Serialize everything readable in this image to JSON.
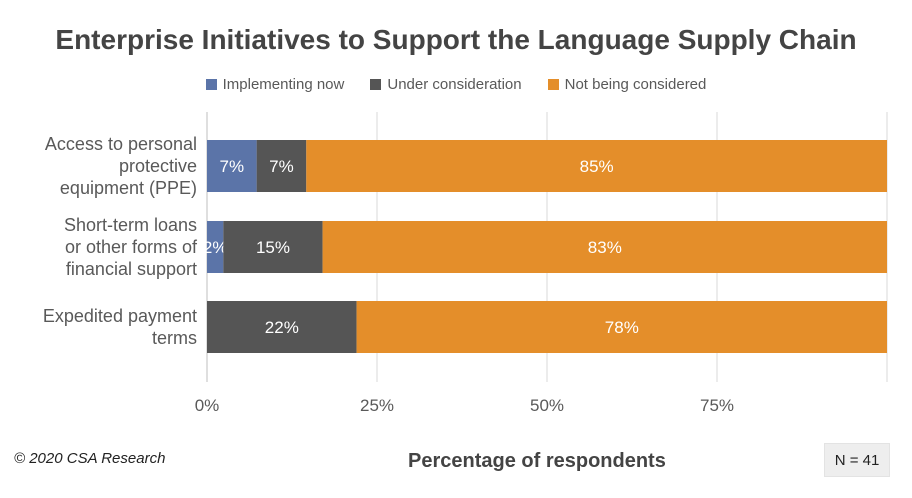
{
  "chart_data": {
    "type": "bar",
    "orientation": "horizontal",
    "stacked": true,
    "title": "Enterprise Initiatives to Support the Language Supply Chain",
    "xlabel": "Percentage of respondents",
    "ylabel": "",
    "xlim": [
      0,
      100
    ],
    "x_ticks": [
      "0%",
      "25%",
      "50%",
      "75%"
    ],
    "grid": true,
    "legend_position": "top",
    "categories": [
      "Access to personal protective equipment (PPE)",
      "Short-term loans or other forms of financial support",
      "Expedited payment terms"
    ],
    "category_lines": [
      [
        "Access to personal",
        "protective",
        "equipment (PPE)"
      ],
      [
        "Short-term loans",
        "or other forms of",
        "financial support"
      ],
      [
        "Expedited payment",
        "terms"
      ]
    ],
    "series": [
      {
        "name": "Implementing now",
        "color": "#5b74a8",
        "values": [
          7.3,
          2.4,
          0
        ],
        "labels": [
          "7%",
          "2%",
          ""
        ]
      },
      {
        "name": "Under consideration",
        "color": "#555555",
        "values": [
          7.3,
          14.6,
          22.0
        ],
        "labels": [
          "7%",
          "15%",
          "22%"
        ]
      },
      {
        "name": "Not being considered",
        "color": "#e48e2a",
        "values": [
          85.4,
          83.0,
          78.0
        ],
        "labels": [
          "85%",
          "83%",
          "78%"
        ]
      }
    ]
  },
  "footer": {
    "copyright": "© 2020 CSA Research",
    "sample_size": "N = 41"
  }
}
